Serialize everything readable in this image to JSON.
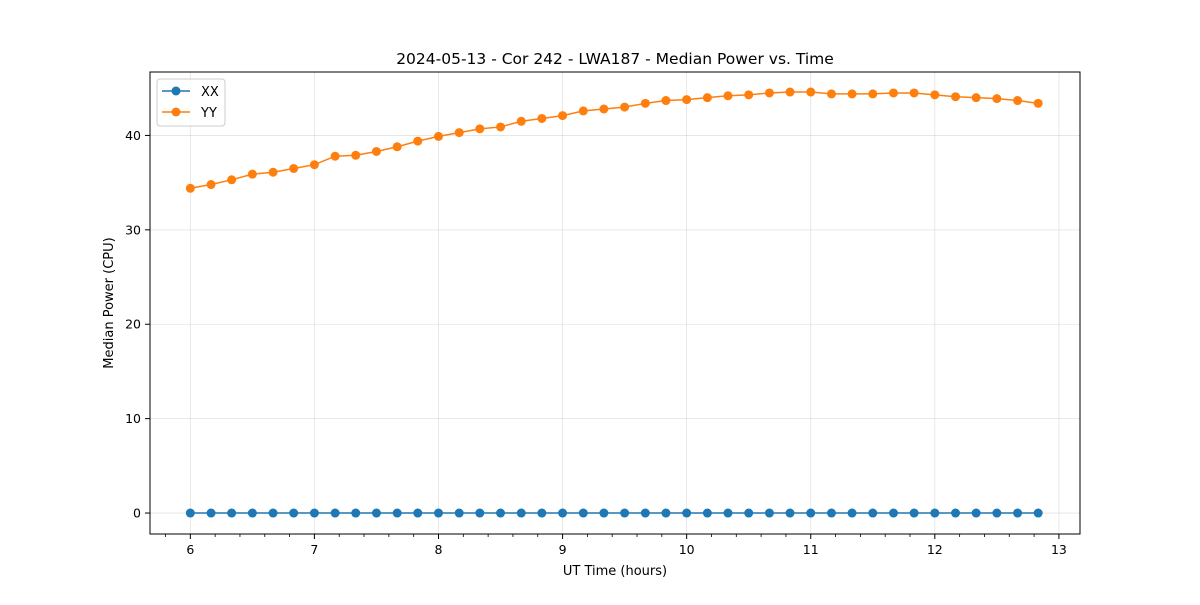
{
  "chart_data": {
    "type": "line",
    "title": "2024-05-13 - Cor 242 - LWA187 - Median Power vs. Time",
    "xlabel": "UT Time (hours)",
    "ylabel": "Median Power (CPU)",
    "xlim": [
      5.675,
      13.17
    ],
    "ylim": [
      -2.22,
      46.72
    ],
    "xticks": [
      6,
      7,
      8,
      9,
      10,
      11,
      12,
      13
    ],
    "x_minor_step": 0.2,
    "yticks": [
      0,
      10,
      20,
      30,
      40
    ],
    "grid": true,
    "legend": {
      "position": "top-left",
      "entries": [
        "XX",
        "YY"
      ]
    },
    "x": [
      6.0,
      6.167,
      6.333,
      6.5,
      6.667,
      6.833,
      7.0,
      7.167,
      7.333,
      7.5,
      7.667,
      7.833,
      8.0,
      8.167,
      8.333,
      8.5,
      8.667,
      8.833,
      9.0,
      9.167,
      9.333,
      9.5,
      9.667,
      9.833,
      10.0,
      10.167,
      10.333,
      10.5,
      10.667,
      10.833,
      11.0,
      11.167,
      11.333,
      11.5,
      11.667,
      11.833,
      12.0,
      12.167,
      12.333,
      12.5,
      12.667,
      12.833
    ],
    "series": [
      {
        "name": "XX",
        "color": "#1f77b4",
        "values": [
          0,
          0,
          0,
          0,
          0,
          0,
          0,
          0,
          0,
          0,
          0,
          0,
          0,
          0,
          0,
          0,
          0,
          0,
          0,
          0,
          0,
          0,
          0,
          0,
          0,
          0,
          0,
          0,
          0,
          0,
          0,
          0,
          0,
          0,
          0,
          0,
          0,
          0,
          0,
          0,
          0,
          0
        ]
      },
      {
        "name": "YY",
        "color": "#ff7f0e",
        "values": [
          34.4,
          34.8,
          35.3,
          35.9,
          36.1,
          36.5,
          36.9,
          37.8,
          37.9,
          38.3,
          38.8,
          39.4,
          39.9,
          40.3,
          40.7,
          40.9,
          41.5,
          41.8,
          42.1,
          42.6,
          42.8,
          43.0,
          43.4,
          43.7,
          43.8,
          44.0,
          44.2,
          44.3,
          44.5,
          44.6,
          44.6,
          44.4,
          44.4,
          44.4,
          44.5,
          44.5,
          44.3,
          44.1,
          44.0,
          43.9,
          43.7,
          43.4
        ]
      }
    ]
  }
}
